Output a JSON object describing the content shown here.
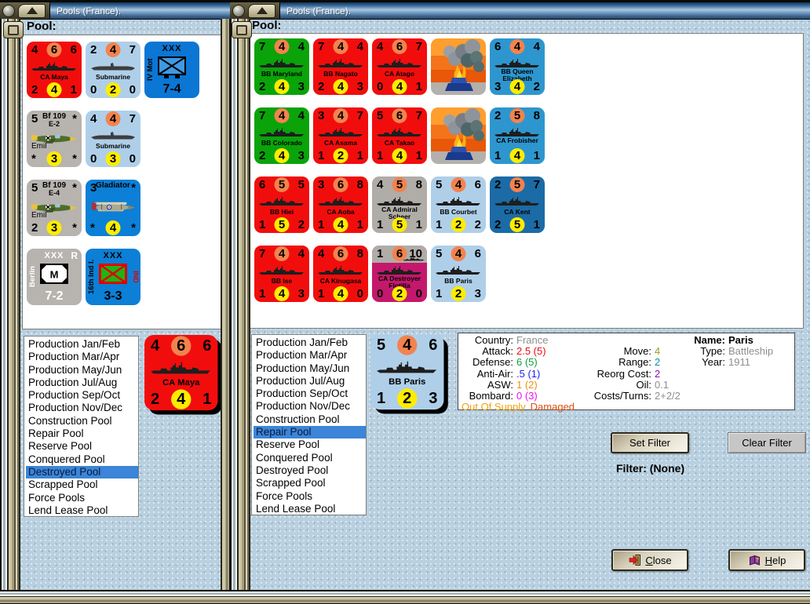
{
  "palette": {
    "window_bg": "#B9D0E0",
    "titlebar_text": "#FFFFFF",
    "counter_red": "#F20D0D",
    "counter_green": "#0AA30A",
    "counter_light_blue": "#AFCFE9",
    "counter_uk_blue": "#2E96CE",
    "counter_mid_blue": "#0C7FD6",
    "counter_dark_blue": "#1B6BA6",
    "counter_gray": "#B7B3AF",
    "counter_magenta": "#C4186C",
    "disc_orange": "#F2834E",
    "disc_yellow": "#FFEC00",
    "list_highlight": "#3C85D8"
  },
  "left_window": {
    "title": "Pools (France).",
    "pool_label": "Pool:",
    "counter_rows": [
      [
        {
          "type": "ship",
          "bg": "#F20D0D",
          "name": "CA Maya",
          "top": [
            "4",
            "6",
            "6"
          ],
          "bottom": [
            "2",
            "4",
            "1"
          ]
        },
        {
          "type": "sub",
          "bg": "#AFCFE9",
          "name": "Submarine",
          "top": [
            "2",
            "4",
            "7"
          ],
          "bottom": [
            "0",
            "2",
            "0"
          ]
        },
        {
          "type": "land",
          "bg": "#0B76D4",
          "side": "IV Mot",
          "size": "XXX",
          "box": "mot",
          "strength": "7-4"
        }
      ],
      [
        {
          "type": "air",
          "bg": "#B7B3AF",
          "plane": "emil",
          "num_tl": "5",
          "title": "Bf 109",
          "subtitle": "E-2",
          "num_tr": "*",
          "label": "Emil",
          "bottom": [
            "*",
            "3",
            "*"
          ]
        },
        {
          "type": "sub",
          "bg": "#AFCFE9",
          "name": "Submarine",
          "top": [
            "4",
            "4",
            "7"
          ],
          "bottom": [
            "0",
            "3",
            "0"
          ]
        }
      ],
      [
        {
          "type": "air",
          "bg": "#B7B3AF",
          "plane": "emil",
          "num_tl": "5",
          "title": "Bf 109",
          "subtitle": "E-4",
          "num_tr": "*",
          "label": "Emil",
          "bottom": [
            "2",
            "3",
            "*"
          ]
        },
        {
          "type": "air",
          "bg": "#0C7FD6",
          "plane": "gladiator",
          "num_tl": "3",
          "title": "Gladiator",
          "subtitle": "",
          "num_tr": "*",
          "label": "",
          "bottom": [
            "*",
            "4",
            "*"
          ]
        }
      ],
      [
        {
          "type": "land",
          "bg": "#B7B3AF",
          "fg": "#FFFFFF",
          "side": "Berlin",
          "size": "XXX",
          "corner": "R",
          "box": "militia",
          "strength": "7-2"
        },
        {
          "type": "land",
          "bg": "#0C7FD6",
          "side": "16th Ind I.",
          "size": "XXX",
          "right_label": "IND",
          "box": "ind",
          "strength": "3-3"
        }
      ]
    ],
    "pool_list": {
      "items": [
        "Production Jan/Feb",
        "Production Mar/Apr",
        "Production May/Jun",
        "Production Jul/Aug",
        "Production Sep/Oct",
        "Production Nov/Dec",
        "Construction Pool",
        "Repair Pool",
        "Reserve Pool",
        "Conquered Pool",
        "Destroyed Pool",
        "Scrapped Pool",
        "Force Pools",
        "Lend Lease Pool"
      ],
      "selected_index": 10,
      "selected_label": "Destroyed Pool"
    },
    "selected_counter": {
      "type": "ship",
      "bg": "#F20D0D",
      "name": "CA Maya",
      "top": [
        "4",
        "6",
        "6"
      ],
      "bottom": [
        "2",
        "4",
        "1"
      ]
    }
  },
  "right_window": {
    "title": "Pools (France).",
    "pool_label": "Pool:",
    "counter_rows": [
      [
        {
          "type": "ship",
          "bg": "#0AA30A",
          "name": "BB Maryland",
          "top": [
            "7",
            "4",
            "4"
          ],
          "bottom": [
            "2",
            "4",
            "3"
          ]
        },
        {
          "type": "ship",
          "bg": "#F20D0D",
          "name": "BB Nagato",
          "top": [
            "7",
            "4",
            "4"
          ],
          "bottom": [
            "2",
            "4",
            "3"
          ]
        },
        {
          "type": "ship",
          "bg": "#F20D0D",
          "name": "CA Atago",
          "top": [
            "4",
            "6",
            "7"
          ],
          "bottom": [
            "0",
            "4",
            "1"
          ]
        },
        {
          "type": "fire",
          "name": "damage marker"
        },
        {
          "type": "ship",
          "bg": "#2E96CE",
          "name": "BB Queen Elizabeth",
          "top": [
            "6",
            "4",
            "4"
          ],
          "bottom": [
            "3",
            "4",
            "2"
          ]
        }
      ],
      [
        {
          "type": "ship",
          "bg": "#0AA30A",
          "name": "BB Colorado",
          "top": [
            "7",
            "4",
            "4"
          ],
          "bottom": [
            "2",
            "4",
            "3"
          ]
        },
        {
          "type": "ship",
          "bg": "#F20D0D",
          "name": "CA Asama",
          "top": [
            "3",
            "4",
            "7"
          ],
          "bottom": [
            "1",
            "2",
            "1"
          ]
        },
        {
          "type": "ship",
          "bg": "#F20D0D",
          "name": "CA Takao",
          "top": [
            "5",
            "6",
            "7"
          ],
          "bottom": [
            "1",
            "4",
            "1"
          ]
        },
        {
          "type": "fire",
          "name": "damage marker"
        },
        {
          "type": "ship",
          "bg": "#2E96CE",
          "name": "CA Frobisher",
          "top": [
            "2",
            "5",
            "8"
          ],
          "bottom": [
            "1",
            "4",
            "1"
          ]
        }
      ],
      [
        {
          "type": "ship",
          "bg": "#F20D0D",
          "name": "BB Hiei",
          "top": [
            "6",
            "5",
            "5"
          ],
          "bottom": [
            "1",
            "5",
            "2"
          ]
        },
        {
          "type": "ship",
          "bg": "#F20D0D",
          "name": "CA Aoba",
          "top": [
            "3",
            "6",
            "8"
          ],
          "bottom": [
            "1",
            "4",
            "1"
          ]
        },
        {
          "type": "ship",
          "bg": "#B0ACA8",
          "name": "CA Admiral Scheer",
          "top": [
            "4",
            "5",
            "8"
          ],
          "bottom": [
            "1",
            "5",
            "1"
          ]
        },
        {
          "type": "ship",
          "bg": "#AFCFE9",
          "name": "BB Courbet",
          "top": [
            "5",
            "4",
            "6"
          ],
          "bottom": [
            "1",
            "2",
            "2"
          ]
        },
        {
          "type": "ship",
          "bg": "#1B6BA6",
          "name": "CA Kent",
          "top": [
            "2",
            "5",
            "7"
          ],
          "bottom": [
            "2",
            "5",
            "1"
          ]
        }
      ],
      [
        {
          "type": "ship",
          "bg": "#F20D0D",
          "name": "BB Ise",
          "top": [
            "7",
            "4",
            "4"
          ],
          "bottom": [
            "1",
            "4",
            "3"
          ]
        },
        {
          "type": "ship",
          "bg": "#F20D0D",
          "name": "CA Kinugasa",
          "top": [
            "4",
            "6",
            "8"
          ],
          "bottom": [
            "1",
            "4",
            "0"
          ]
        },
        {
          "type": "flotilla",
          "bg": "#C4186C",
          "name": "CA Destroyer Flotilla",
          "top": [
            "1",
            "6",
            "10"
          ],
          "bottom": [
            "0",
            "2",
            "0"
          ]
        },
        {
          "type": "ship",
          "bg": "#AFCFE9",
          "name": "BB Paris",
          "top": [
            "5",
            "4",
            "6"
          ],
          "bottom": [
            "1",
            "2",
            "3"
          ]
        }
      ]
    ],
    "pool_list": {
      "items": [
        "Production Jan/Feb",
        "Production Mar/Apr",
        "Production May/Jun",
        "Production Jul/Aug",
        "Production Sep/Oct",
        "Production Nov/Dec",
        "Construction Pool",
        "Repair Pool",
        "Reserve Pool",
        "Conquered Pool",
        "Destroyed Pool",
        "Scrapped Pool",
        "Force Pools",
        "Lend Lease Pool"
      ],
      "selected_index": 7,
      "selected_label": "Repair Pool"
    },
    "selected_counter": {
      "type": "ship",
      "bg": "#AFCFE9",
      "name": "BB Paris",
      "top": [
        "5",
        "4",
        "6"
      ],
      "bottom": [
        "1",
        "2",
        "3"
      ]
    },
    "details": {
      "rows": [
        [
          {
            "label": "Country:",
            "value": "France",
            "color": "#8E8E8E"
          },
          null,
          {
            "label": "Name:",
            "value": "Paris",
            "bold": true
          }
        ],
        [
          {
            "label": "Attack:",
            "value": "2.5 (5)",
            "color": "#E81010"
          },
          {
            "label": "Move:",
            "value": "4",
            "color": "#9C9C10"
          },
          {
            "label": "Type:",
            "value": "Battleship",
            "color": "#8E8E8E"
          }
        ],
        [
          {
            "label": "Defense:",
            "value": "6 (5)",
            "color": "#0E9E3E"
          },
          {
            "label": "Range:",
            "value": "2",
            "color": "#0E8EA0"
          },
          {
            "label": "Year:",
            "value": "1911",
            "color": "#8E8E8E"
          }
        ],
        [
          {
            "label": "Anti-Air:",
            "value": ".5 (1)",
            "color": "#2020F0"
          },
          {
            "label": "Reorg Cost:",
            "value": "2",
            "color": "#8A10B0"
          },
          null
        ],
        [
          {
            "label": "ASW:",
            "value": "1 (2)",
            "color": "#F09010"
          },
          {
            "label": "Oil:",
            "value": "0.1",
            "color": "#8E8E8E"
          },
          null
        ],
        [
          {
            "label": "Bombard:",
            "value": "0 (3)",
            "color": "#F010F0"
          },
          {
            "label": "Costs/Turns:",
            "value": "2+2/2",
            "color": "#8E8E8E"
          },
          null
        ]
      ],
      "status": [
        {
          "text": "Out Of Supply",
          "color": "#F0A010"
        },
        {
          "text": "Damaged",
          "color": "#E0500C"
        }
      ]
    },
    "filter": {
      "set_label": "Set Filter",
      "clear_label": "Clear Filter",
      "status": "Filter: (None)"
    },
    "buttons": {
      "close": "Close",
      "help": "Help"
    }
  }
}
